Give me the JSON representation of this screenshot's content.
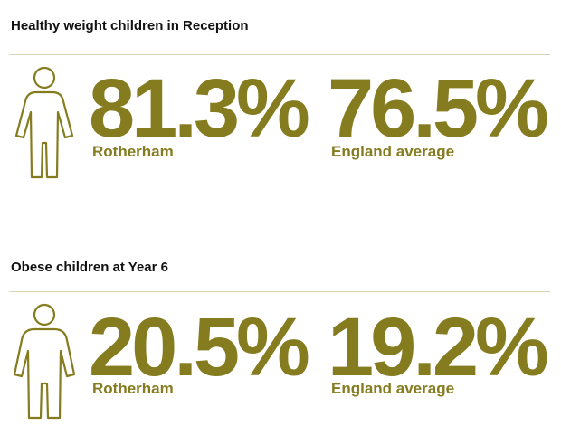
{
  "accent_color": "#857b1f",
  "sections": [
    {
      "title": "Healthy weight children in Reception",
      "icon": "child-figure-icon",
      "stats": [
        {
          "value": "81.3%",
          "label": "Rotherham"
        },
        {
          "value": "76.5%",
          "label": "England average"
        }
      ]
    },
    {
      "title": "Obese children at Year 6",
      "icon": "child-figure-icon",
      "stats": [
        {
          "value": "20.5%",
          "label": "Rotherham"
        },
        {
          "value": "19.2%",
          "label": "England average"
        }
      ]
    }
  ]
}
